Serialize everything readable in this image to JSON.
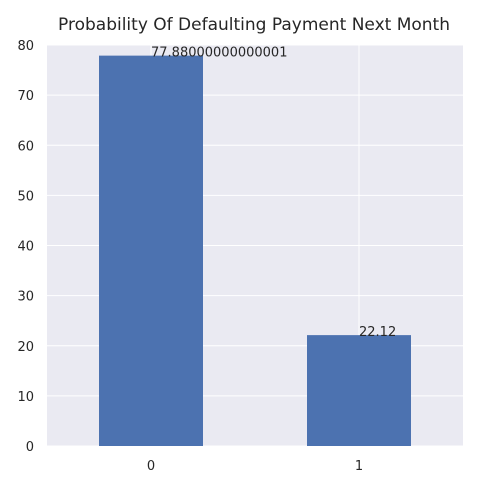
{
  "chart_data": {
    "type": "bar",
    "title": "Probability Of Defaulting Payment Next Month",
    "categories": [
      "0",
      "1"
    ],
    "values": [
      77.88000000000001,
      22.12
    ],
    "data_labels": [
      "77.88000000000001",
      "22.12"
    ],
    "xlabel": "",
    "ylabel": "",
    "ylim": [
      0,
      80
    ],
    "yticks": [
      0,
      10,
      20,
      30,
      40,
      50,
      60,
      70,
      80
    ],
    "grid": true,
    "style": "seaborn-darkgrid",
    "colors": {
      "bar": "#4c72b0",
      "plot_bg": "#eaeaf2",
      "grid": "#ffffff",
      "text": "#262626"
    }
  }
}
